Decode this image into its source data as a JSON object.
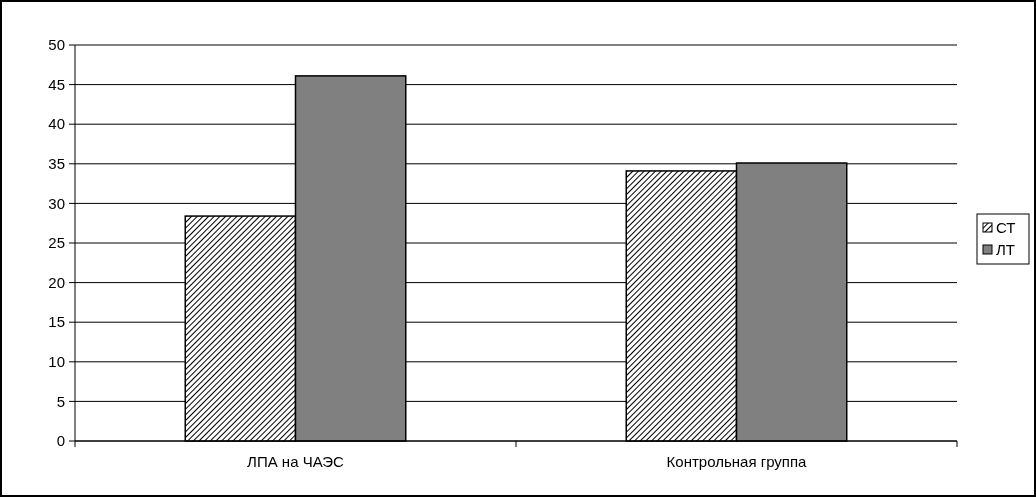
{
  "chart_data": {
    "type": "bar",
    "categories": [
      "ЛПА на ЧАЭС",
      "Контрольная группа"
    ],
    "series": [
      {
        "name": "СТ",
        "color": "#000000",
        "values": [
          28.4,
          34.1
        ]
      },
      {
        "name": "ЛТ",
        "color": "#808080",
        "values": [
          46.1,
          35.1
        ]
      }
    ],
    "ylim": [
      0,
      50
    ],
    "yticks": [
      0,
      5,
      10,
      15,
      20,
      25,
      30,
      35,
      40,
      45,
      50
    ],
    "grid": "y",
    "legend": "right"
  }
}
